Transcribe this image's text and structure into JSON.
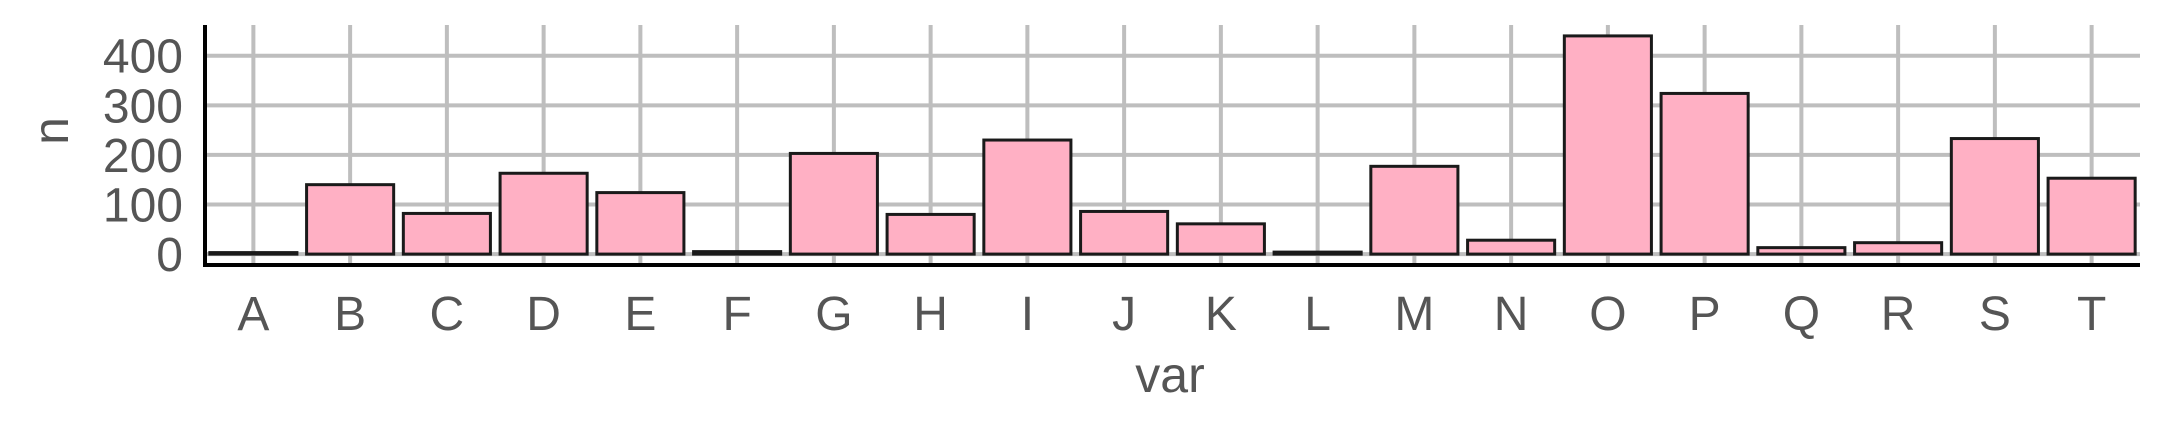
{
  "chart_data": {
    "type": "bar",
    "categories": [
      "A",
      "B",
      "C",
      "D",
      "E",
      "F",
      "G",
      "H",
      "I",
      "J",
      "K",
      "L",
      "M",
      "N",
      "O",
      "P",
      "Q",
      "R",
      "S",
      "T"
    ],
    "values": [
      3,
      140,
      82,
      163,
      124,
      5,
      203,
      80,
      230,
      86,
      61,
      4,
      177,
      28,
      440,
      324,
      13,
      23,
      233,
      153
    ],
    "xlabel": "var",
    "ylabel": "n",
    "ylim": [
      -22,
      462
    ],
    "yticks": [
      0,
      100,
      200,
      300,
      400
    ],
    "ytick_labels": [
      "0",
      "100",
      "200",
      "300",
      "400"
    ],
    "grid": true,
    "legend": "none",
    "colors": {
      "bar_fill": "#ffb0c4",
      "bar_stroke": "#1a1a1a",
      "grid": "#bebebe",
      "axis": "#000000",
      "text": "#555555"
    }
  }
}
